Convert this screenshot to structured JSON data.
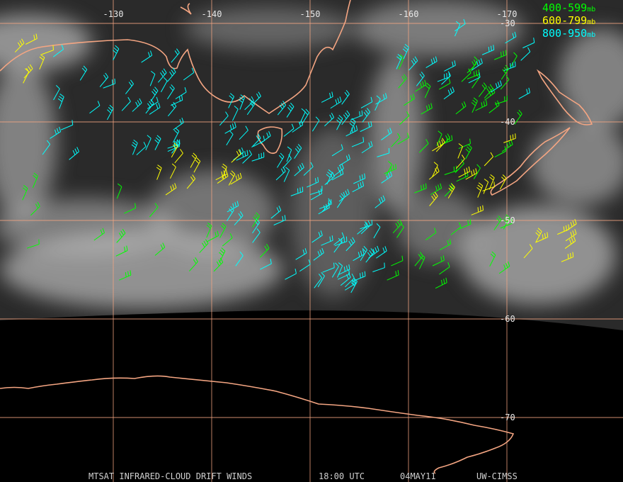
{
  "map": {
    "longitude_labels": [
      "-130",
      "-140",
      "-150",
      "-160",
      "-170"
    ],
    "latitude_labels": [
      "-30",
      "-40",
      "-50",
      "-60",
      "-70"
    ],
    "legend": [
      {
        "range": "400-599",
        "unit": "mb",
        "color": "#00ff00"
      },
      {
        "range": "600-799",
        "unit": "mb",
        "color": "#ffff00"
      },
      {
        "range": "800-950",
        "unit": "mb",
        "color": "#00ffff"
      }
    ],
    "footer": [
      "MTSAT INFRARED-CLOUD DRIFT WINDS",
      "18:00 UTC",
      "04MAY11",
      "UW-CIMSS"
    ]
  }
}
